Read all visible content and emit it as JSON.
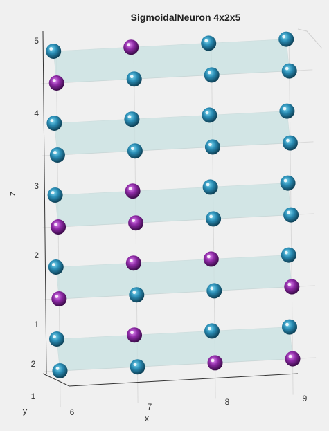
{
  "title": "SigmoidalNeuron 4x2x5",
  "axes": {
    "xlabel": "x",
    "ylabel": "y",
    "zlabel": "z",
    "xticks": [
      "6",
      "7",
      "8",
      "9"
    ],
    "yticks": [
      "1",
      "2"
    ],
    "zticks": [
      "1",
      "2",
      "3",
      "4",
      "5"
    ]
  },
  "colors": {
    "background": "#f0f0f0",
    "plane": "#c9e2e2",
    "neuron_cyan": "#2a8db5",
    "neuron_purple": "#8e2aa6",
    "grid": "#d9d9d9"
  },
  "layers": [
    {
      "z": 5,
      "purple": [
        "6,2",
        "7,1"
      ]
    },
    {
      "z": 4,
      "purple": []
    },
    {
      "z": 3,
      "purple": [
        "6,2",
        "7,2",
        "7,1"
      ]
    },
    {
      "z": 2,
      "purple": [
        "6,2",
        "9,2",
        "7,1",
        "8,1"
      ]
    },
    {
      "z": 1,
      "purple": [
        "8,2",
        "9,2",
        "7,1"
      ]
    }
  ]
}
